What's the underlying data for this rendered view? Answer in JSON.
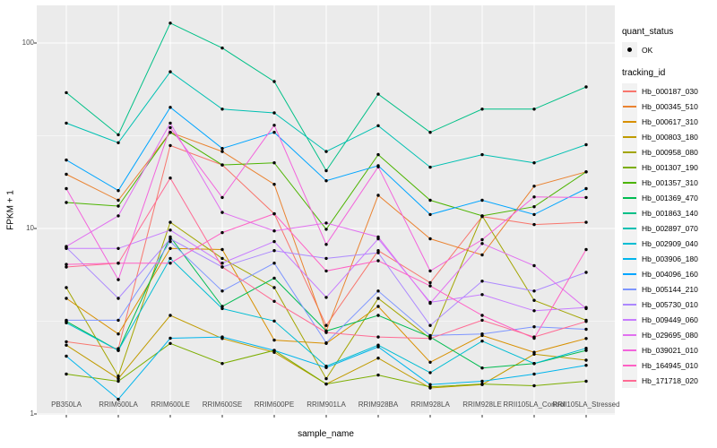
{
  "chart_data": {
    "type": "line",
    "title": "",
    "xlabel": "sample_name",
    "ylabel": "FPKM + 1",
    "y_scale": "log10",
    "ylim": [
      1,
      135
    ],
    "y_ticks": [
      {
        "label": "1",
        "value": 1
      },
      {
        "label": "10",
        "value": 10
      },
      {
        "label": "100",
        "value": 100
      }
    ],
    "y_minor_ticks": [
      3.162,
      31.62
    ],
    "grid": "white-on-grey",
    "legend_position": "right",
    "panel_background": "#EBEBEB",
    "grid_color": "#FFFFFF",
    "tick_label_color": "#4D4D4D",
    "point_color": "#000000",
    "legend_key_background": "#F2F2F2",
    "categories": [
      "PB350LA",
      "RRIM600LA",
      "RRIM600LE",
      "RRIM600SE",
      "RRIM600PE",
      "RRIM901LA",
      "RRIM928BA",
      "RRIM928LA",
      "RRIM928LE",
      "RRII105LA_Control",
      "RRII105LA_Stressed"
    ],
    "quant_status_legend": {
      "title": "quant_status",
      "entries": [
        {
          "label": "OK",
          "marker": "point"
        }
      ]
    },
    "series_legend_title": "tracking_id",
    "series": [
      {
        "name": "Hb_000187_030",
        "color": "#F8766D",
        "values": [
          2.45,
          2.25,
          28,
          22,
          12,
          3.0,
          7.6,
          5.1,
          11.6,
          10.5,
          10.8
        ]
      },
      {
        "name": "Hb_000345_510",
        "color": "#EA8331",
        "values": [
          19.6,
          14.2,
          33,
          26,
          17.3,
          2.8,
          15.1,
          8.8,
          7.2,
          16.9,
          20.2
        ]
      },
      {
        "name": "Hb_000617_310",
        "color": "#D89000",
        "values": [
          4.2,
          2.7,
          7.8,
          7.7,
          2.5,
          2.4,
          3.8,
          1.9,
          2.65,
          2.15,
          2.55
        ]
      },
      {
        "name": "Hb_000803_180",
        "color": "#C09B00",
        "values": [
          2.35,
          1.55,
          3.4,
          2.55,
          2.15,
          1.45,
          2.0,
          1.38,
          1.44,
          2.1,
          1.95
        ]
      },
      {
        "name": "Hb_000958_080",
        "color": "#A3A500",
        "values": [
          4.8,
          1.6,
          10.8,
          6.9,
          4.8,
          1.55,
          4.2,
          2.55,
          11.7,
          4.1,
          3.2
        ]
      },
      {
        "name": "Hb_001307_190",
        "color": "#7CAE00",
        "values": [
          1.64,
          1.5,
          2.4,
          1.87,
          2.2,
          1.45,
          1.62,
          1.4,
          1.45,
          1.42,
          1.5
        ]
      },
      {
        "name": "Hb_001357_310",
        "color": "#4CB400",
        "values": [
          13.8,
          13.2,
          33,
          22,
          22.6,
          9.9,
          25,
          14.2,
          11.7,
          13.1,
          20.2
        ]
      },
      {
        "name": "Hb_001369_470",
        "color": "#00BC51",
        "values": [
          3.16,
          2.2,
          9.0,
          3.8,
          5.4,
          2.8,
          3.4,
          2.6,
          1.77,
          1.87,
          2.2
        ]
      },
      {
        "name": "Hb_001863_140",
        "color": "#00C087",
        "values": [
          54,
          32,
          128,
          94,
          62,
          20.5,
          53,
          33,
          44,
          44,
          58
        ]
      },
      {
        "name": "Hb_002897_070",
        "color": "#00C0B2",
        "values": [
          37,
          29,
          70,
          44,
          42,
          26,
          35.8,
          21.4,
          25,
          22.6,
          28.3
        ]
      },
      {
        "name": "Hb_002909_040",
        "color": "#00BDD3",
        "values": [
          3.1,
          2.2,
          6.9,
          3.7,
          3.17,
          1.81,
          2.35,
          1.67,
          2.47,
          1.87,
          2.26
        ]
      },
      {
        "name": "Hb_003906_180",
        "color": "#00B5EC",
        "values": [
          2.05,
          1.2,
          2.56,
          2.6,
          2.2,
          1.78,
          2.3,
          1.44,
          1.5,
          1.64,
          1.83
        ]
      },
      {
        "name": "Hb_004096_160",
        "color": "#00A5FF",
        "values": [
          23.4,
          16,
          45,
          27,
          33,
          18.1,
          21.8,
          11.9,
          14.2,
          11.9,
          16.4
        ]
      },
      {
        "name": "Hb_005144_210",
        "color": "#7E96FF",
        "values": [
          3.2,
          3.2,
          8.5,
          4.6,
          6.5,
          2.42,
          4.6,
          2.65,
          2.7,
          2.95,
          2.86
        ]
      },
      {
        "name": "Hb_005730_010",
        "color": "#AC88FF",
        "values": [
          7.9,
          4.2,
          8.8,
          6.2,
          7.6,
          6.9,
          7.4,
          3.0,
          5.2,
          4.6,
          5.8
        ]
      },
      {
        "name": "Hb_009449_060",
        "color": "#C77CFF",
        "values": [
          7.8,
          7.8,
          9.8,
          6.5,
          8.5,
          4.25,
          8.8,
          4.0,
          4.4,
          3.6,
          3.75
        ]
      },
      {
        "name": "Hb_029695_080",
        "color": "#E170F0",
        "values": [
          8.0,
          11.7,
          37,
          12.2,
          9.7,
          10.7,
          9.0,
          3.95,
          8.3,
          6.3,
          3.7
        ]
      },
      {
        "name": "Hb_039021_010",
        "color": "#F364DC",
        "values": [
          16.4,
          5.3,
          35,
          14.7,
          36,
          8.2,
          21.5,
          5.9,
          8.7,
          14.8,
          14.7
        ]
      },
      {
        "name": "Hb_164945_010",
        "color": "#FF61C5",
        "values": [
          6.4,
          6.5,
          6.5,
          9.5,
          12,
          5.9,
          6.7,
          4.9,
          3.4,
          2.56,
          7.7
        ]
      },
      {
        "name": "Hb_171718_020",
        "color": "#FF6B94",
        "values": [
          6.2,
          6.5,
          18.7,
          6.2,
          4.05,
          2.75,
          2.6,
          2.55,
          3.2,
          2.6,
          3.15
        ]
      }
    ]
  }
}
